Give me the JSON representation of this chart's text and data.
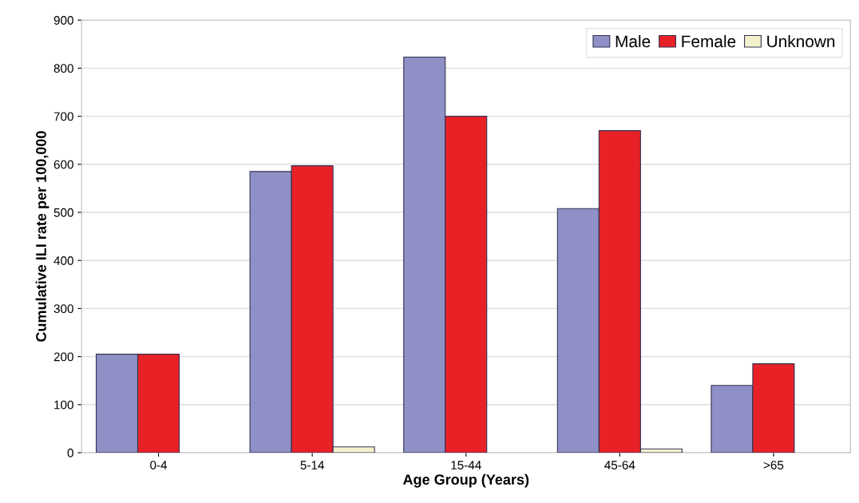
{
  "chart_data": {
    "type": "bar",
    "xlabel": "Age Group (Years)",
    "ylabel": "Cumulative ILI rate per 100,000",
    "categories": [
      "0-4",
      "5-14",
      "15-44",
      "45-64",
      ">65"
    ],
    "series": [
      {
        "name": "Male",
        "color": "#8f90c6",
        "values": [
          205,
          585,
          823,
          508,
          140
        ]
      },
      {
        "name": "Female",
        "color": "#e82127",
        "values": [
          205,
          597,
          700,
          670,
          185
        ]
      },
      {
        "name": "Unknown",
        "color": "#f3f1cc",
        "values": [
          null,
          12,
          null,
          8,
          null
        ]
      }
    ],
    "ylim": [
      0,
      900
    ],
    "yticks": [
      0,
      100,
      200,
      300,
      400,
      500,
      600,
      700,
      800,
      900
    ],
    "grid": "y",
    "legend": "top right"
  }
}
